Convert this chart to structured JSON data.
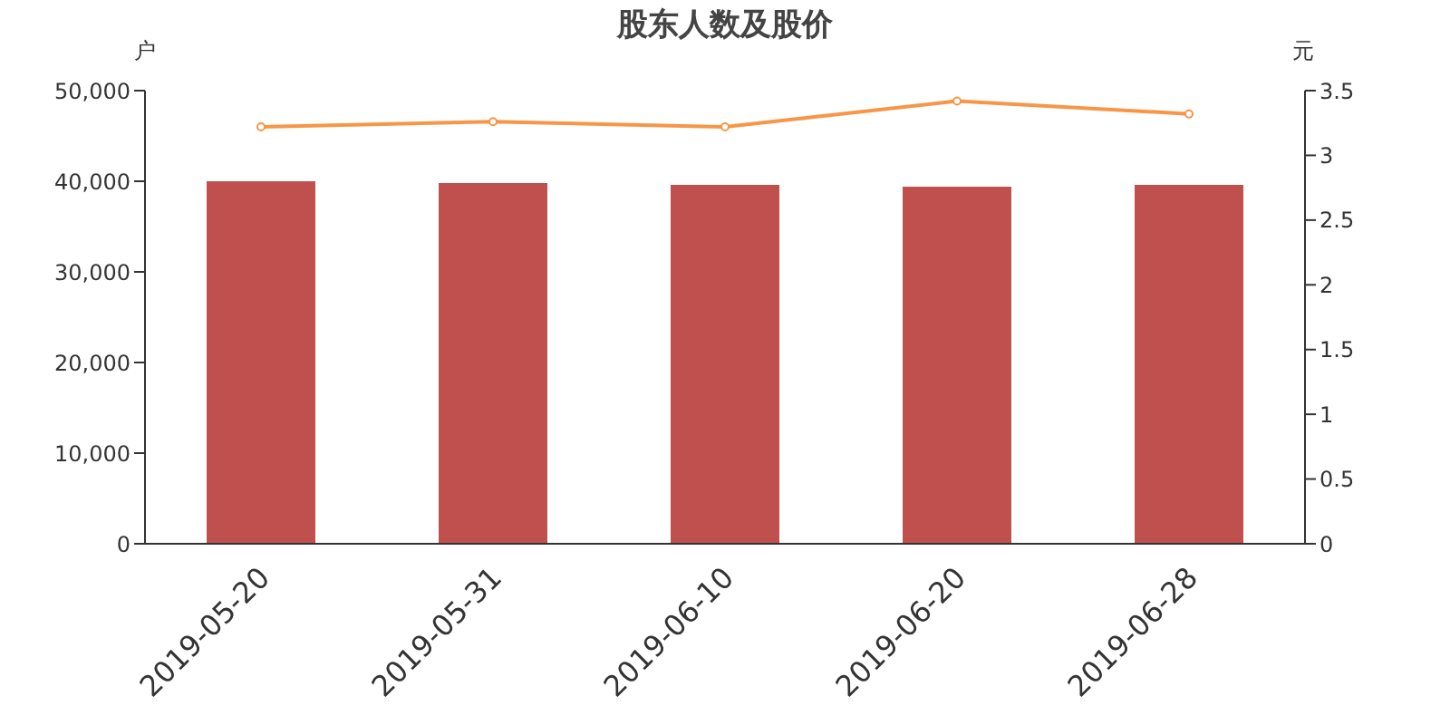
{
  "chart_data": {
    "type": "bar",
    "title": "股东人数及股价",
    "ylabel": "户",
    "y2label": "元",
    "categories": [
      "2019-05-20",
      "2019-05-31",
      "2019-06-10",
      "2019-06-20",
      "2019-06-28"
    ],
    "series": [
      {
        "color": "#c0504d",
        "values": [
          40000,
          39800,
          39600,
          39400,
          39600
        ]
      },
      {
        "type": "line",
        "axis": "y2",
        "color": "#f79646",
        "marker": "circle",
        "values": [
          3.22,
          3.26,
          3.22,
          3.42,
          3.32
        ]
      }
    ],
    "ylim": [
      0,
      50000
    ],
    "yticks": [
      0,
      {
        "value": 10000,
        "label": "10,000"
      },
      {
        "value": 20000,
        "label": "20,000"
      },
      {
        "value": 30000,
        "label": "30,000"
      },
      {
        "value": 40000,
        "label": "40,000"
      },
      {
        "value": 50000,
        "label": "50,000"
      }
    ],
    "y2lim": [
      0,
      3.5
    ],
    "y2ticks": [
      0,
      0.5,
      1,
      1.5,
      2,
      2.5,
      3,
      3.5
    ],
    "grid": false,
    "legend": false
  }
}
